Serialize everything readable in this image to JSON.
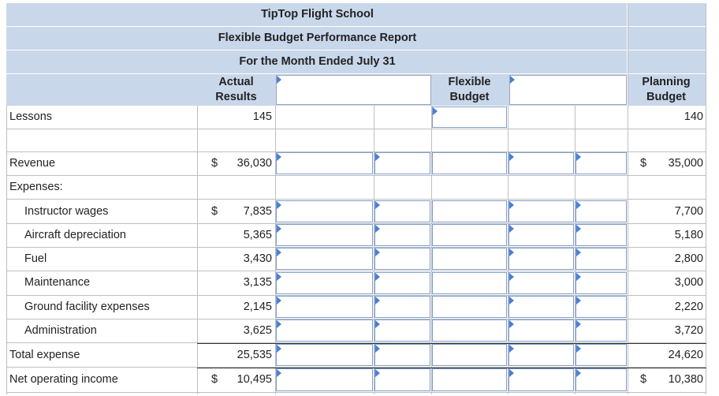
{
  "report": {
    "company": "TipTop Flight School",
    "title": "Flexible Budget Performance Report",
    "period": "For the Month Ended July 31"
  },
  "columns": {
    "actual_line1": "Actual",
    "actual_line2": "Results",
    "flexible_line1": "Flexible",
    "flexible_line2": "Budget",
    "planning_line1": "Planning",
    "planning_line2": "Budget"
  },
  "rows": {
    "lessons": {
      "label": "Lessons",
      "actual": "145",
      "planning": "140"
    },
    "revenue": {
      "label": "Revenue",
      "actual_dollar": "$",
      "actual": "36,030",
      "planning_dollar": "$",
      "planning": "35,000"
    },
    "expenses_header": {
      "label": "Expenses:"
    },
    "instructor_wages": {
      "label": "Instructor wages",
      "actual_dollar": "$",
      "actual": "7,835",
      "planning": "7,700"
    },
    "aircraft_depreciation": {
      "label": "Aircraft depreciation",
      "actual": "5,365",
      "planning": "5,180"
    },
    "fuel": {
      "label": "Fuel",
      "actual": "3,430",
      "planning": "2,800"
    },
    "maintenance": {
      "label": "Maintenance",
      "actual": "3,135",
      "planning": "3,000"
    },
    "ground_facility": {
      "label": "Ground facility expenses",
      "actual": "2,145",
      "planning": "2,220"
    },
    "administration": {
      "label": "Administration",
      "actual": "3,625",
      "planning": "3,720"
    },
    "total_expense": {
      "label": "Total expense",
      "actual": "25,535",
      "planning": "24,620"
    },
    "net_operating_income": {
      "label": "Net operating income",
      "actual_dollar": "$",
      "actual": "10,495",
      "planning_dollar": "$",
      "planning": "10,380"
    }
  }
}
